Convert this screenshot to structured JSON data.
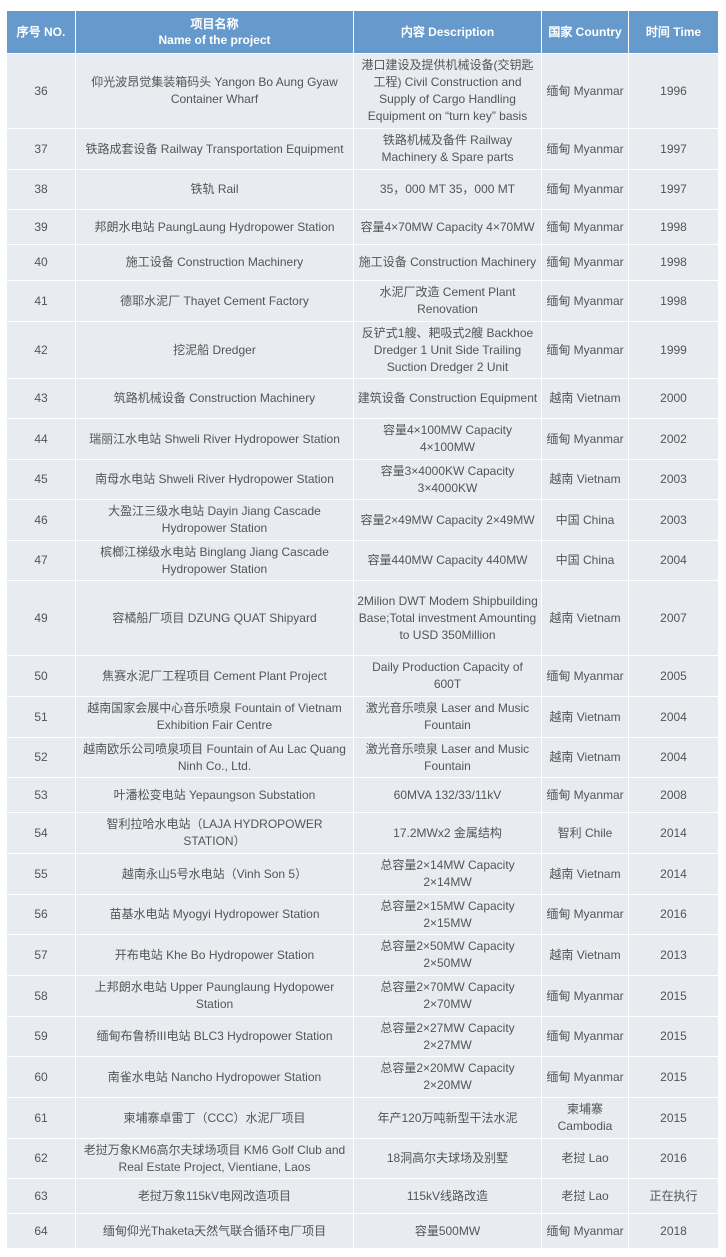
{
  "header": {
    "no": "序号 NO.",
    "name_cn": "项目名称",
    "name_en": "Name of the project",
    "desc": "内容 Description",
    "country": "国家 Country",
    "time": "时间 Time"
  },
  "rows": [
    {
      "no": "36",
      "name": "仰光波昂觉集装箱码头 Yangon Bo Aung Gyaw Container Wharf",
      "desc": "港口建设及提供机械设备(交钥匙工程) Civil Construction and Supply of Cargo Handling Equipment on “turn key” basis",
      "country": "缅甸 Myanmar",
      "time": "1996"
    },
    {
      "no": "37",
      "name": "铁路成套设备 Railway Transportation Equipment",
      "desc": "铁路机械及备件 Railway Machinery & Spare parts",
      "country": "缅甸 Myanmar",
      "time": "1997"
    },
    {
      "no": "38",
      "name": "铁轨 Rail",
      "desc": "35，000 MT 35，000 MT",
      "country": "缅甸 Myanmar",
      "time": "1997"
    },
    {
      "no": "39",
      "name": "邦朗水电站 PaungLaung Hydropower Station",
      "desc": "容量4×70MW Capacity 4×70MW",
      "country": "缅甸 Myanmar",
      "time": "1998"
    },
    {
      "no": "40",
      "name": "施工设备 Construction Machinery",
      "desc": "施工设备 Construction Machinery",
      "country": "缅甸 Myanmar",
      "time": "1998"
    },
    {
      "no": "41",
      "name": "德耶水泥厂 Thayet Cement Factory",
      "desc": "水泥厂改造 Cement Plant Renovation",
      "country": "缅甸 Myanmar",
      "time": "1998"
    },
    {
      "no": "42",
      "name": "挖泥船 Dredger",
      "desc": "反铲式1艘、耙吸式2艘 Backhoe Dredger 1 Unit Side Trailing Suction Dredger 2 Unit",
      "country": "缅甸 Myanmar",
      "time": "1999"
    },
    {
      "no": "43",
      "name": "筑路机械设备 Construction Machinery",
      "desc": "建筑设备 Construction Equipment",
      "country": "越南 Vietnam",
      "time": "2000"
    },
    {
      "no": "44",
      "name": "瑞丽江水电站 Shweli River Hydropower Station",
      "desc": "容量4×100MW Capacity 4×100MW",
      "country": "缅甸 Myanmar",
      "time": "2002"
    },
    {
      "no": "45",
      "name": "南母水电站 Shweli River Hydropower Station",
      "desc": "容量3×4000KW Capacity 3×4000KW",
      "country": "越南 Vietnam",
      "time": "2003"
    },
    {
      "no": "46",
      "name": "大盈江三级水电站 Dayin Jiang Cascade Hydropower Station",
      "desc": "容量2×49MW Capacity 2×49MW",
      "country": "中国 China",
      "time": "2003"
    },
    {
      "no": "47",
      "name": "槟榔江梯级水电站 Binglang Jiang Cascade Hydropower Station",
      "desc": "容量440MW Capacity 440MW",
      "country": "中国 China",
      "time": "2004"
    },
    {
      "no": "49",
      "name": "容橘船厂项目 DZUNG QUAT Shipyard",
      "desc": "2Milion DWT Modem Shipbuilding Base;Total investment Amounting to USD 350Million",
      "country": "越南 Vietnam",
      "time": "2007"
    },
    {
      "no": "50",
      "name": "焦赛水泥厂工程项目 Cement Plant Project",
      "desc": "Daily Production Capacity of 600T",
      "country": "缅甸 Myanmar",
      "time": "2005"
    },
    {
      "no": "51",
      "name": "越南国家会展中心音乐喷泉 Fountain of Vietnam Exhibition Fair Centre",
      "desc": "激光音乐喷泉 Laser and Music Fountain",
      "country": "越南 Vietnam",
      "time": "2004"
    },
    {
      "no": "52",
      "name": "越南欧乐公司喷泉项目 Fountain of Au Lac Quang Ninh Co., Ltd.",
      "desc": "激光音乐喷泉 Laser and Music Fountain",
      "country": "越南 Vietnam",
      "time": "2004"
    },
    {
      "no": "53",
      "name": "叶潘松变电站 Yepaungson Substation",
      "desc": "60MVA 132/33/11kV",
      "country": "缅甸 Myanmar",
      "time": "2008"
    },
    {
      "no": "54",
      "name": "智利拉哈水电站（LAJA HYDROPOWER STATION）",
      "desc": "17.2MWx2 金属结构",
      "country": "智利 Chile",
      "time": "2014"
    },
    {
      "no": "55",
      "name": "越南永山5号水电站（Vinh Son 5）",
      "desc": "总容量2×14MW Capacity 2×14MW",
      "country": "越南 Vietnam",
      "time": "2014"
    },
    {
      "no": "56",
      "name": "苗基水电站 Myogyi Hydropower Station",
      "desc": "总容量2×15MW Capacity 2×15MW",
      "country": "缅甸 Myanmar",
      "time": "2016"
    },
    {
      "no": "57",
      "name": "开布电站 Khe Bo Hydropower Station",
      "desc": "总容量2×50MW Capacity 2×50MW",
      "country": "越南 Vietnam",
      "time": "2013"
    },
    {
      "no": "58",
      "name": "上邦朗水电站 Upper Paunglaung Hydopower Station",
      "desc": "总容量2×70MW Capacity 2×70MW",
      "country": "缅甸 Myanmar",
      "time": "2015"
    },
    {
      "no": "59",
      "name": "缅甸布鲁桥III电站 BLC3 Hydropower Station",
      "desc": "总容量2×27MW Capacity 2×27MW",
      "country": "缅甸 Myanmar",
      "time": "2015"
    },
    {
      "no": "60",
      "name": "南雀水电站 Nancho Hydropower Station",
      "desc": "总容量2×20MW Capacity 2×20MW",
      "country": "缅甸 Myanmar",
      "time": "2015"
    },
    {
      "no": "61",
      "name": "柬埔寨卓雷丁（CCC）水泥厂项目",
      "desc": "年产120万吨新型干法水泥",
      "country": "柬埔寨 Cambodia",
      "time": "2015"
    },
    {
      "no": "62",
      "name": "老挝万象KM6高尔夫球场项目 KM6 Golf Club and Real Estate Project, Vientiane, Laos",
      "desc": "18洞高尔夫球场及别墅",
      "country": "老挝 Lao",
      "time": "2016"
    },
    {
      "no": "63",
      "name": "老挝万象115kV电网改造项目",
      "desc": "115kV线路改造",
      "country": "老挝 Lao",
      "time": "正在执行"
    },
    {
      "no": "64",
      "name": "缅甸仰光Thaketa天然气联合循环电厂项目",
      "desc": "容量500MW",
      "country": "缅甸 Myanmar",
      "time": "2018"
    }
  ]
}
